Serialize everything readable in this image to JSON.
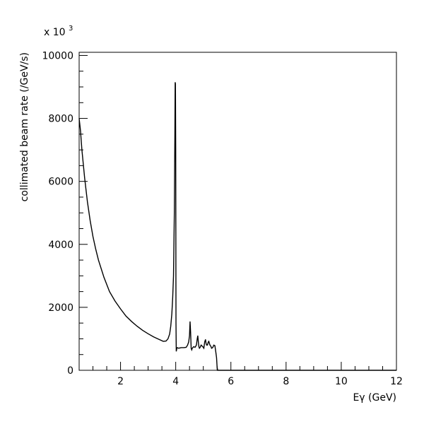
{
  "chart_data": {
    "type": "line",
    "title": "",
    "xlabel": "Eγ (GeV)",
    "ylabel": "collimated beam rate (/GeV/s)",
    "y_multiplier_label": "x 10",
    "y_multiplier_exponent": "3",
    "xlim": [
      0.5,
      12
    ],
    "ylim": [
      0,
      10100
    ],
    "x_ticks": [
      2,
      4,
      6,
      8,
      10,
      12
    ],
    "y_ticks": [
      0,
      2000,
      4000,
      6000,
      8000,
      10000
    ],
    "grid": false,
    "legend": "none",
    "line_color": "#000000",
    "series": [
      {
        "x": [
          0.5,
          0.55,
          0.6,
          0.7,
          0.8,
          0.9,
          1.0,
          1.1,
          1.2,
          1.4,
          1.6,
          1.8,
          2.0,
          2.2,
          2.4,
          2.6,
          2.8,
          3.0,
          3.2,
          3.4,
          3.55,
          3.65,
          3.72,
          3.78,
          3.82,
          3.86,
          3.89,
          3.92,
          3.95,
          3.97,
          3.98,
          3.99,
          4.0,
          4.01,
          4.02,
          4.04,
          4.06,
          4.1,
          4.2,
          4.3,
          4.38,
          4.43,
          4.47,
          4.5,
          4.52,
          4.54,
          4.56,
          4.58,
          4.6,
          4.65,
          4.7,
          4.75,
          4.78,
          4.8,
          4.82,
          4.84,
          4.86,
          4.88,
          4.92,
          4.98,
          5.02,
          5.05,
          5.08,
          5.1,
          5.12,
          5.15,
          5.18,
          5.2,
          5.24,
          5.26,
          5.28,
          5.3,
          5.34,
          5.38,
          5.42,
          5.45,
          5.48,
          5.5,
          5.52,
          5.55,
          5.6,
          6.0,
          8.0,
          10.0,
          12.0
        ],
        "y": [
          8000,
          7600,
          7000,
          6100,
          5350,
          4750,
          4250,
          3850,
          3500,
          2950,
          2500,
          2200,
          1950,
          1720,
          1550,
          1400,
          1270,
          1160,
          1060,
          980,
          920,
          930,
          1000,
          1150,
          1400,
          1800,
          2300,
          3000,
          5000,
          7500,
          9150,
          9100,
          7000,
          1500,
          600,
          700,
          720,
          700,
          720,
          720,
          730,
          800,
          900,
          1100,
          1550,
          1200,
          700,
          650,
          700,
          750,
          730,
          800,
          1000,
          1100,
          900,
          750,
          700,
          720,
          800,
          750,
          700,
          900,
          980,
          850,
          800,
          800,
          900,
          920,
          800,
          780,
          750,
          700,
          720,
          800,
          780,
          600,
          400,
          100,
          0,
          0,
          0,
          0,
          0,
          0,
          0
        ]
      }
    ]
  }
}
